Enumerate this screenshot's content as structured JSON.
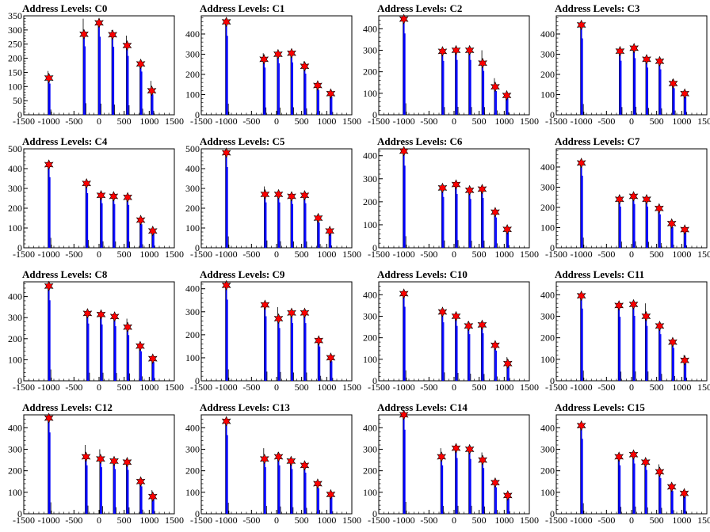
{
  "chart_data": [
    {
      "type": "bar",
      "title": "Address Levels: C0",
      "ylim": [
        0,
        350
      ],
      "yticks": [
        0,
        50,
        100,
        150,
        200,
        250,
        300,
        350
      ],
      "xlim": [
        -1500,
        1500
      ],
      "xticks": [
        -1500,
        -1000,
        -500,
        0,
        500,
        1000,
        1500
      ],
      "peaks": [
        {
          "x": -1000,
          "y": 130,
          "h": 155
        },
        {
          "x": -300,
          "y": 285,
          "h": 340
        },
        {
          "x": 0,
          "y": 325,
          "h": 330
        },
        {
          "x": 270,
          "y": 283,
          "h": 300
        },
        {
          "x": 560,
          "y": 245,
          "h": 280
        },
        {
          "x": 830,
          "y": 180,
          "h": 180
        },
        {
          "x": 1050,
          "y": 85,
          "h": 120
        }
      ]
    },
    {
      "type": "bar",
      "title": "Address Levels: C1",
      "ylim": [
        0,
        490
      ],
      "yticks": [
        0,
        100,
        200,
        300,
        400
      ],
      "xlim": [
        -1500,
        1500
      ],
      "xticks": [
        -1500,
        -1000,
        -500,
        0,
        500,
        1000,
        1500
      ],
      "peaks": [
        {
          "x": -1000,
          "y": 460,
          "h": 460
        },
        {
          "x": -250,
          "y": 275,
          "h": 305
        },
        {
          "x": 30,
          "y": 300,
          "h": 300
        },
        {
          "x": 300,
          "y": 305,
          "h": 310
        },
        {
          "x": 560,
          "y": 240,
          "h": 265
        },
        {
          "x": 820,
          "y": 145,
          "h": 155
        },
        {
          "x": 1080,
          "y": 105,
          "h": 120
        }
      ]
    },
    {
      "type": "bar",
      "title": "Address Levels: C2",
      "ylim": [
        0,
        460
      ],
      "yticks": [
        0,
        100,
        200,
        300,
        400
      ],
      "xlim": [
        -1500,
        1500
      ],
      "xticks": [
        -1500,
        -1000,
        -500,
        0,
        500,
        1000,
        1500
      ],
      "peaks": [
        {
          "x": -1000,
          "y": 445,
          "h": 445
        },
        {
          "x": -230,
          "y": 295,
          "h": 300
        },
        {
          "x": 40,
          "y": 300,
          "h": 305
        },
        {
          "x": 310,
          "y": 300,
          "h": 300
        },
        {
          "x": 570,
          "y": 240,
          "h": 300
        },
        {
          "x": 820,
          "y": 130,
          "h": 170
        },
        {
          "x": 1050,
          "y": 90,
          "h": 100
        }
      ]
    },
    {
      "type": "bar",
      "title": "Address Levels: C3",
      "ylim": [
        0,
        490
      ],
      "yticks": [
        0,
        100,
        200,
        300,
        400
      ],
      "xlim": [
        -1500,
        1500
      ],
      "xticks": [
        -1500,
        -1000,
        -500,
        0,
        500,
        1000,
        1500
      ],
      "peaks": [
        {
          "x": -1000,
          "y": 445,
          "h": 445
        },
        {
          "x": -230,
          "y": 315,
          "h": 320
        },
        {
          "x": 50,
          "y": 330,
          "h": 330
        },
        {
          "x": 300,
          "y": 275,
          "h": 280
        },
        {
          "x": 560,
          "y": 265,
          "h": 265
        },
        {
          "x": 830,
          "y": 155,
          "h": 175
        },
        {
          "x": 1060,
          "y": 105,
          "h": 120
        }
      ]
    },
    {
      "type": "bar",
      "title": "Address Levels: C4",
      "ylim": [
        0,
        500
      ],
      "yticks": [
        0,
        100,
        200,
        300,
        400,
        500
      ],
      "xlim": [
        -1500,
        1500
      ],
      "xticks": [
        -1500,
        -1000,
        -500,
        0,
        500,
        1000,
        1500
      ],
      "peaks": [
        {
          "x": -1000,
          "y": 420,
          "h": 420
        },
        {
          "x": -250,
          "y": 325,
          "h": 330
        },
        {
          "x": 40,
          "y": 265,
          "h": 270
        },
        {
          "x": 290,
          "y": 260,
          "h": 265
        },
        {
          "x": 570,
          "y": 255,
          "h": 260
        },
        {
          "x": 830,
          "y": 140,
          "h": 150
        },
        {
          "x": 1070,
          "y": 85,
          "h": 95
        }
      ]
    },
    {
      "type": "bar",
      "title": "Address Levels: C5",
      "ylim": [
        0,
        500
      ],
      "yticks": [
        0,
        100,
        200,
        300,
        400,
        500
      ],
      "xlim": [
        -1500,
        1500
      ],
      "xticks": [
        -1500,
        -1000,
        -500,
        0,
        500,
        1000,
        1500
      ],
      "peaks": [
        {
          "x": -1000,
          "y": 480,
          "h": 480
        },
        {
          "x": -230,
          "y": 270,
          "h": 310
        },
        {
          "x": 40,
          "y": 270,
          "h": 275
        },
        {
          "x": 300,
          "y": 260,
          "h": 265
        },
        {
          "x": 560,
          "y": 265,
          "h": 265
        },
        {
          "x": 830,
          "y": 150,
          "h": 160
        },
        {
          "x": 1060,
          "y": 85,
          "h": 95
        }
      ]
    },
    {
      "type": "bar",
      "title": "Address Levels: C6",
      "ylim": [
        0,
        430
      ],
      "yticks": [
        0,
        100,
        200,
        300,
        400
      ],
      "xlim": [
        -1500,
        1500
      ],
      "xticks": [
        -1500,
        -1000,
        -500,
        0,
        500,
        1000,
        1500
      ],
      "peaks": [
        {
          "x": -1000,
          "y": 420,
          "h": 420
        },
        {
          "x": -230,
          "y": 260,
          "h": 265
        },
        {
          "x": 40,
          "y": 275,
          "h": 280
        },
        {
          "x": 310,
          "y": 250,
          "h": 255
        },
        {
          "x": 560,
          "y": 255,
          "h": 260
        },
        {
          "x": 820,
          "y": 155,
          "h": 160
        },
        {
          "x": 1060,
          "y": 80,
          "h": 95
        }
      ]
    },
    {
      "type": "bar",
      "title": "Address Levels: C7",
      "ylim": [
        0,
        490
      ],
      "yticks": [
        0,
        100,
        200,
        300,
        400
      ],
      "xlim": [
        -1500,
        1500
      ],
      "xticks": [
        -1500,
        -1000,
        -500,
        0,
        500,
        1000,
        1500
      ],
      "peaks": [
        {
          "x": -1000,
          "y": 420,
          "h": 420
        },
        {
          "x": -240,
          "y": 240,
          "h": 255
        },
        {
          "x": 40,
          "y": 255,
          "h": 265
        },
        {
          "x": 300,
          "y": 240,
          "h": 245
        },
        {
          "x": 550,
          "y": 195,
          "h": 200
        },
        {
          "x": 800,
          "y": 120,
          "h": 130
        },
        {
          "x": 1060,
          "y": 90,
          "h": 100
        }
      ]
    },
    {
      "type": "bar",
      "title": "Address Levels: C8",
      "ylim": [
        0,
        470
      ],
      "yticks": [
        0,
        100,
        200,
        300,
        400
      ],
      "xlim": [
        -1500,
        1500
      ],
      "xticks": [
        -1500,
        -1000,
        -500,
        0,
        500,
        1000,
        1500
      ],
      "peaks": [
        {
          "x": -1000,
          "y": 450,
          "h": 450
        },
        {
          "x": -230,
          "y": 320,
          "h": 320
        },
        {
          "x": 40,
          "y": 315,
          "h": 320
        },
        {
          "x": 310,
          "y": 305,
          "h": 310
        },
        {
          "x": 570,
          "y": 255,
          "h": 295
        },
        {
          "x": 820,
          "y": 165,
          "h": 175
        },
        {
          "x": 1070,
          "y": 105,
          "h": 115
        }
      ]
    },
    {
      "type": "bar",
      "title": "Address Levels: C9",
      "ylim": [
        0,
        430
      ],
      "yticks": [
        0,
        100,
        200,
        300,
        400
      ],
      "xlim": [
        -1500,
        1500
      ],
      "xticks": [
        -1500,
        -1000,
        -500,
        0,
        500,
        1000,
        1500
      ],
      "peaks": [
        {
          "x": -1000,
          "y": 415,
          "h": 415
        },
        {
          "x": -230,
          "y": 330,
          "h": 335
        },
        {
          "x": 40,
          "y": 270,
          "h": 320
        },
        {
          "x": 300,
          "y": 295,
          "h": 300
        },
        {
          "x": 560,
          "y": 295,
          "h": 300
        },
        {
          "x": 840,
          "y": 175,
          "h": 180
        },
        {
          "x": 1080,
          "y": 100,
          "h": 105
        }
      ]
    },
    {
      "type": "bar",
      "title": "Address Levels: C10",
      "ylim": [
        0,
        460
      ],
      "yticks": [
        0,
        100,
        200,
        300,
        400
      ],
      "xlim": [
        -1500,
        1500
      ],
      "xticks": [
        -1500,
        -1000,
        -500,
        0,
        500,
        1000,
        1500
      ],
      "peaks": [
        {
          "x": -1000,
          "y": 405,
          "h": 405
        },
        {
          "x": -230,
          "y": 320,
          "h": 325
        },
        {
          "x": 40,
          "y": 300,
          "h": 305
        },
        {
          "x": 290,
          "y": 255,
          "h": 275
        },
        {
          "x": 560,
          "y": 260,
          "h": 265
        },
        {
          "x": 820,
          "y": 165,
          "h": 170
        },
        {
          "x": 1070,
          "y": 80,
          "h": 110
        }
      ]
    },
    {
      "type": "bar",
      "title": "Address Levels: C11",
      "ylim": [
        0,
        460
      ],
      "yticks": [
        0,
        100,
        200,
        300,
        400
      ],
      "xlim": [
        -1500,
        1500
      ],
      "xticks": [
        -1500,
        -1000,
        -500,
        0,
        500,
        1000,
        1500
      ],
      "peaks": [
        {
          "x": -1000,
          "y": 395,
          "h": 395
        },
        {
          "x": -250,
          "y": 350,
          "h": 355
        },
        {
          "x": 40,
          "y": 355,
          "h": 360
        },
        {
          "x": 290,
          "y": 300,
          "h": 360
        },
        {
          "x": 560,
          "y": 255,
          "h": 270
        },
        {
          "x": 820,
          "y": 180,
          "h": 185
        },
        {
          "x": 1060,
          "y": 95,
          "h": 120
        }
      ]
    },
    {
      "type": "bar",
      "title": "Address Levels: C12",
      "ylim": [
        0,
        460
      ],
      "yticks": [
        0,
        100,
        200,
        300,
        400
      ],
      "xlim": [
        -1500,
        1500
      ],
      "xticks": [
        -1500,
        -1000,
        -500,
        0,
        500,
        1000,
        1500
      ],
      "peaks": [
        {
          "x": -1000,
          "y": 445,
          "h": 445
        },
        {
          "x": -260,
          "y": 265,
          "h": 320
        },
        {
          "x": 30,
          "y": 255,
          "h": 300
        },
        {
          "x": 300,
          "y": 245,
          "h": 255
        },
        {
          "x": 560,
          "y": 240,
          "h": 250
        },
        {
          "x": 830,
          "y": 150,
          "h": 160
        },
        {
          "x": 1070,
          "y": 80,
          "h": 110
        }
      ]
    },
    {
      "type": "bar",
      "title": "Address Levels: C13",
      "ylim": [
        0,
        460
      ],
      "yticks": [
        0,
        100,
        200,
        300,
        400
      ],
      "xlim": [
        -1500,
        1500
      ],
      "xticks": [
        -1500,
        -1000,
        -500,
        0,
        500,
        1000,
        1500
      ],
      "peaks": [
        {
          "x": -1000,
          "y": 430,
          "h": 430
        },
        {
          "x": -240,
          "y": 255,
          "h": 305
        },
        {
          "x": 40,
          "y": 265,
          "h": 285
        },
        {
          "x": 290,
          "y": 245,
          "h": 255
        },
        {
          "x": 560,
          "y": 225,
          "h": 230
        },
        {
          "x": 820,
          "y": 140,
          "h": 145
        },
        {
          "x": 1080,
          "y": 90,
          "h": 95
        }
      ]
    },
    {
      "type": "bar",
      "title": "Address Levels: C14",
      "ylim": [
        0,
        460
      ],
      "yticks": [
        0,
        100,
        200,
        300,
        400
      ],
      "xlim": [
        -1500,
        1500
      ],
      "xticks": [
        -1500,
        -1000,
        -500,
        0,
        500,
        1000,
        1500
      ],
      "peaks": [
        {
          "x": -1000,
          "y": 460,
          "h": 460
        },
        {
          "x": -250,
          "y": 265,
          "h": 305
        },
        {
          "x": 40,
          "y": 305,
          "h": 310
        },
        {
          "x": 310,
          "y": 300,
          "h": 310
        },
        {
          "x": 570,
          "y": 250,
          "h": 285
        },
        {
          "x": 820,
          "y": 145,
          "h": 150
        },
        {
          "x": 1070,
          "y": 85,
          "h": 100
        }
      ]
    },
    {
      "type": "bar",
      "title": "Address Levels: C15",
      "ylim": [
        0,
        460
      ],
      "yticks": [
        0,
        100,
        200,
        300,
        400
      ],
      "xlim": [
        -1500,
        1500
      ],
      "xticks": [
        -1500,
        -1000,
        -500,
        0,
        500,
        1000,
        1500
      ],
      "peaks": [
        {
          "x": -1000,
          "y": 410,
          "h": 410
        },
        {
          "x": -250,
          "y": 265,
          "h": 270
        },
        {
          "x": 40,
          "y": 275,
          "h": 280
        },
        {
          "x": 280,
          "y": 240,
          "h": 245
        },
        {
          "x": 560,
          "y": 195,
          "h": 230
        },
        {
          "x": 800,
          "y": 125,
          "h": 140
        },
        {
          "x": 1050,
          "y": 95,
          "h": 110
        }
      ]
    }
  ],
  "colors": {
    "bar": "#0000ff",
    "bar_secondary": "#000000",
    "marker": "#ff0000",
    "marker_edge": "#000000",
    "axis": "#000000"
  }
}
